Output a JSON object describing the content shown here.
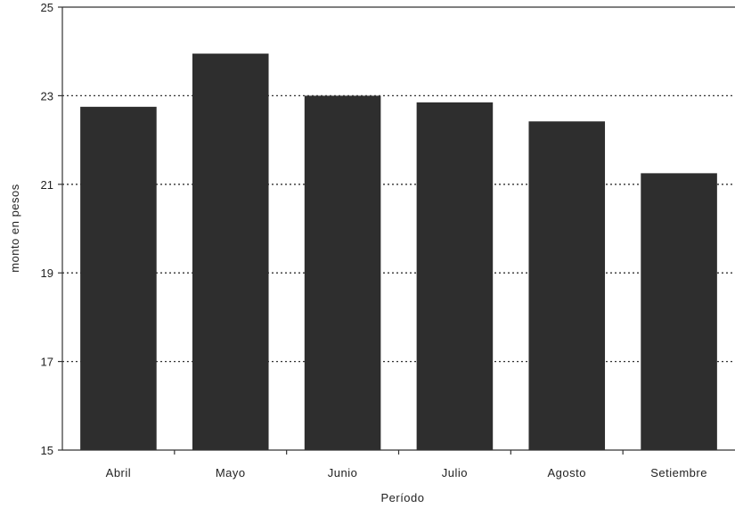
{
  "chart_data": {
    "type": "bar",
    "title": "",
    "xlabel": "Período",
    "ylabel": "monto en pesos",
    "categories": [
      "Abril",
      "Mayo",
      "Junio",
      "Julio",
      "Agosto",
      "Setiembre"
    ],
    "values": [
      22.75,
      23.95,
      23.0,
      22.85,
      22.42,
      21.25
    ],
    "ylim": [
      15,
      25
    ],
    "yticks": [
      "15",
      "17",
      "19",
      "21",
      "23",
      "25"
    ],
    "grid": true,
    "legend": "none",
    "bar_color": "#2e2e2e"
  }
}
